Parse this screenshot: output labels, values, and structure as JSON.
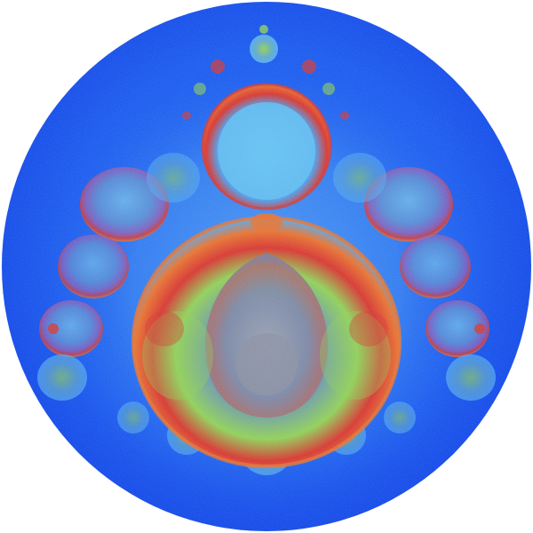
{
  "image": {
    "subject": "fractal-disc",
    "palette": {
      "background": "#ffffff",
      "disc_outer": "#0b3fe6",
      "disc_mid": "#1e63f0",
      "halo_light": "#4fa8f2",
      "speckle_light": "#7fd0f4",
      "rim_orange": "#e8702a",
      "rim_red": "#d8322a",
      "glow_green": "#8fcf52",
      "glow_purple": "#8a5bb5",
      "core_gray": "#8c94a8"
    }
  }
}
